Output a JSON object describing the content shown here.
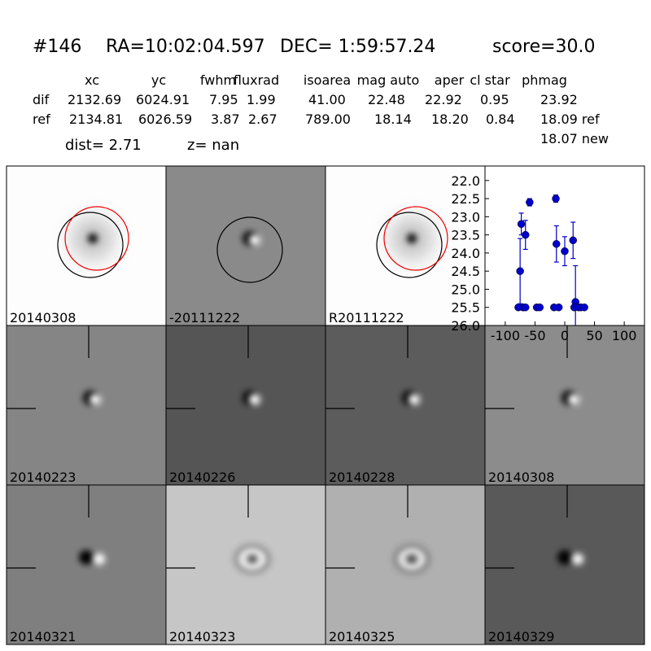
{
  "header": {
    "id": "#146",
    "ra": "RA=10:02:04.597",
    "dec": "DEC= 1:59:57.24",
    "score": "score=30.0"
  },
  "table": {
    "headers": [
      "xc",
      "yc",
      "fwhm",
      "fluxrad",
      "isoarea",
      "mag auto",
      "aper",
      "cl star",
      "phmag"
    ],
    "rows": [
      [
        "dif",
        "2132.69",
        "6024.91",
        "7.95",
        "1.99",
        "41.00",
        "22.48",
        "22.92",
        "0.95",
        "23.92"
      ],
      [
        "ref",
        "2134.81",
        "6026.59",
        "3.87",
        "2.67",
        "789.00",
        "18.14",
        "18.20",
        "0.84",
        "18.09 ref"
      ]
    ],
    "extra": "18.07 new"
  },
  "dist": "dist=  2.71",
  "z": "z=   nan",
  "panels": [
    {
      "label": "20140308",
      "label_color": "#000000"
    },
    {
      "label": "-20111222",
      "label_color": "#000000"
    },
    {
      "label": "R20111222",
      "label_color": "#000000"
    },
    {
      "label": "20140223",
      "label_color": "#000000"
    },
    {
      "label": "20140226",
      "label_color": "#000000"
    },
    {
      "label": "20140228",
      "label_color": "#000000"
    },
    {
      "label": "20140308",
      "label_color": "#ff0000"
    },
    {
      "label": "20140321",
      "label_color": "#000000"
    },
    {
      "label": "20140323",
      "label_color": "#000000"
    },
    {
      "label": "20140325",
      "label_color": "#000000"
    },
    {
      "label": "20140329",
      "label_color": "#000000"
    }
  ],
  "chart_data": {
    "type": "errorbar",
    "x": [
      -78,
      -75,
      -73,
      -70,
      -66,
      -66,
      -59,
      -47,
      -42,
      -18,
      -15,
      -14,
      -10,
      0,
      14,
      18,
      16,
      23,
      27,
      33
    ],
    "values": [
      25.5,
      24.5,
      23.2,
      25.5,
      23.5,
      25.5,
      22.6,
      25.5,
      25.5,
      25.5,
      22.5,
      23.75,
      25.5,
      23.95,
      23.65,
      25.35,
      25.5,
      25.5,
      25.5,
      25.5
    ],
    "errors": [
      0,
      0.9,
      0.3,
      0,
      0.4,
      0,
      0.1,
      0,
      0,
      0,
      0.1,
      0.5,
      0,
      0.4,
      0.5,
      1.0,
      0,
      0,
      0,
      0
    ],
    "color": "#0000cc",
    "xlim": [
      -134,
      134
    ],
    "xticks": [
      -100,
      -50,
      0,
      50,
      100
    ],
    "ylim": [
      26.0,
      21.6
    ],
    "yticks": [
      {
        "value": 22,
        "label": "22.0"
      },
      {
        "value": 22.5,
        "label": "22.5"
      },
      {
        "value": 23,
        "label": "23.0"
      },
      {
        "value": 23.5,
        "label": "23.5"
      },
      {
        "value": 24,
        "label": "24.0"
      },
      {
        "value": 24.5,
        "label": "24.5"
      },
      {
        "value": 25,
        "label": "25.0"
      },
      {
        "value": 25.5,
        "label": "25.5"
      },
      {
        "value": 26,
        "label": "26.0"
      }
    ]
  }
}
